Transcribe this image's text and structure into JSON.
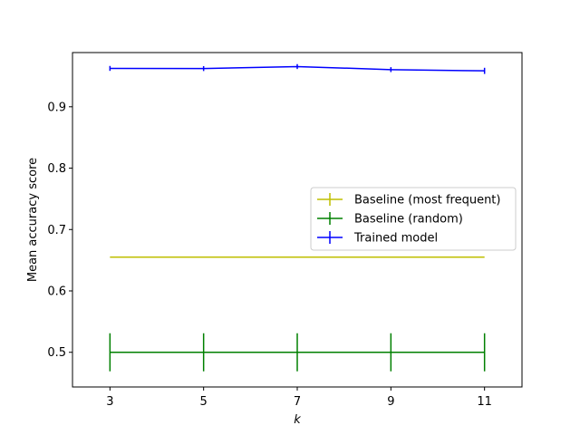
{
  "chart_data": {
    "type": "line",
    "xlabel": "k",
    "ylabel": "Mean accuracy score",
    "x": [
      3,
      5,
      7,
      9,
      11
    ],
    "xticks": [
      3,
      5,
      7,
      9,
      11
    ],
    "xlim": [
      2.2,
      11.8
    ],
    "ylim": [
      0.4435,
      0.9883
    ],
    "yticks": [
      0.5,
      0.6,
      0.7,
      0.8,
      0.9
    ],
    "ytick_labels": [
      "0.5",
      "0.6",
      "0.7",
      "0.8",
      "0.9"
    ],
    "grid": false,
    "legend_position": "center-right",
    "series": [
      {
        "name": "Baseline (most frequent)",
        "color": "#bfbf00",
        "values": [
          0.655,
          0.655,
          0.655,
          0.655,
          0.655
        ],
        "errors": [
          0,
          0,
          0,
          0,
          0
        ]
      },
      {
        "name": "Baseline (random)",
        "color": "#008000",
        "values": [
          0.5,
          0.5,
          0.5,
          0.5,
          0.5
        ],
        "errors": [
          0.031,
          0.031,
          0.031,
          0.031,
          0.031
        ]
      },
      {
        "name": "Trained model",
        "color": "#0000ff",
        "values": [
          0.9625,
          0.9622,
          0.9655,
          0.9605,
          0.9585
        ],
        "errors": [
          0.004,
          0.004,
          0.004,
          0.004,
          0.005
        ]
      }
    ]
  }
}
